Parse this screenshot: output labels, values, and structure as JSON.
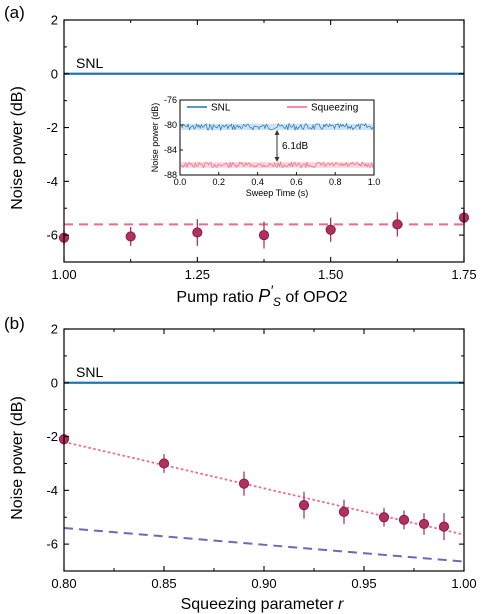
{
  "colors": {
    "snl": "#1f77b4",
    "squeezing": "#f06a82",
    "marker_fill": "#b0305e",
    "marker_edge": "#8c1c46",
    "errorbar": "#a33a64",
    "purple_dash": "#6a6ab8",
    "inset_snl_fill": "#cfe3f4",
    "inset_sq_fill": "#fbd3dc"
  },
  "chart_data": [
    {
      "id": "a",
      "type": "scatter",
      "panel_label": "(a)",
      "xlabel_main": "Pump ratio ",
      "xlabel_sym": "P",
      "xlabel_prime": "′",
      "xlabel_sub": "S",
      "xlabel_tail": " of OPO2",
      "ylabel": "Noise power (dB)",
      "xlim": [
        1.0,
        1.75
      ],
      "ylim": [
        -7,
        2
      ],
      "xticks": [
        "1.00",
        "1.25",
        "1.50",
        "1.75"
      ],
      "yticks": [
        "2",
        "0",
        "-2",
        "-4",
        "-6"
      ],
      "snl_label": "SNL",
      "snl_level": 0,
      "dashed_level": -5.6,
      "points": [
        {
          "x": 1.0,
          "y": -6.1,
          "err": 0.3
        },
        {
          "x": 1.125,
          "y": -6.05,
          "err": 0.35
        },
        {
          "x": 1.25,
          "y": -5.9,
          "err": 0.5
        },
        {
          "x": 1.375,
          "y": -6.0,
          "err": 0.5
        },
        {
          "x": 1.5,
          "y": -5.8,
          "err": 0.45
        },
        {
          "x": 1.625,
          "y": -5.6,
          "err": 0.45
        },
        {
          "x": 1.75,
          "y": -5.35,
          "err": 0.3
        }
      ],
      "inset": {
        "xlabel": "Sweep Time (s)",
        "ylabel": "Noise power (dB)",
        "xlim": [
          0.0,
          1.0
        ],
        "ylim": [
          -88,
          -76
        ],
        "xticks": [
          "0.0",
          "0.2",
          "0.4",
          "0.6",
          "0.8",
          "1.0"
        ],
        "yticks": [
          "-76",
          "-80",
          "-84",
          "-88"
        ],
        "legend": [
          "SNL",
          "Squeezing"
        ],
        "snl_level": -80.3,
        "squeezing_level": -86.4,
        "annotation": "6.1dB"
      }
    },
    {
      "id": "b",
      "type": "scatter",
      "panel_label": "(b)",
      "xlabel_main": "Squeezing parameter ",
      "xlabel_sym": "r",
      "ylabel": "Noise power (dB)",
      "xlim": [
        0.8,
        1.0
      ],
      "ylim": [
        -7,
        2
      ],
      "xticks": [
        "0.80",
        "0.85",
        "0.90",
        "0.95",
        "1.00"
      ],
      "yticks": [
        "2",
        "0",
        "-2",
        "-4",
        "-6"
      ],
      "snl_label": "SNL",
      "snl_level": 0,
      "dotted_fit": [
        [
          0.8,
          -2.2
        ],
        [
          1.0,
          -5.65
        ]
      ],
      "purple_dashed": [
        [
          0.8,
          -5.4
        ],
        [
          1.0,
          -6.65
        ]
      ],
      "points": [
        {
          "x": 0.8,
          "y": -2.1,
          "err": 0.0
        },
        {
          "x": 0.85,
          "y": -3.0,
          "err": 0.35
        },
        {
          "x": 0.89,
          "y": -3.75,
          "err": 0.45
        },
        {
          "x": 0.92,
          "y": -4.55,
          "err": 0.5
        },
        {
          "x": 0.94,
          "y": -4.8,
          "err": 0.45
        },
        {
          "x": 0.96,
          "y": -5.0,
          "err": 0.35
        },
        {
          "x": 0.97,
          "y": -5.1,
          "err": 0.35
        },
        {
          "x": 0.98,
          "y": -5.25,
          "err": 0.4
        },
        {
          "x": 0.99,
          "y": -5.35,
          "err": 0.5
        }
      ]
    }
  ]
}
